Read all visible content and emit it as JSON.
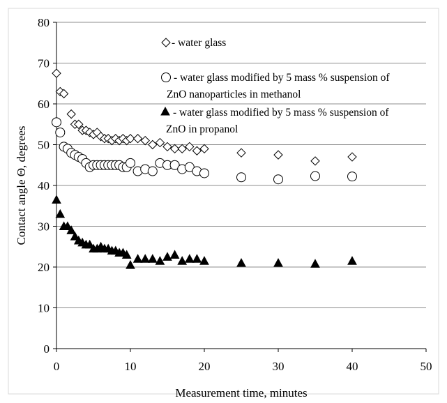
{
  "chart_data": {
    "type": "scatter",
    "title": "",
    "xlabel": "Measurement time, minutes",
    "ylabel": "Contact angle Θ, degrees",
    "xlim": [
      0,
      50
    ],
    "ylim": [
      0,
      80
    ],
    "xticks": [
      "0",
      "10",
      "20",
      "30",
      "40",
      "50"
    ],
    "yticks": [
      "0",
      "10",
      "20",
      "30",
      "40",
      "50",
      "60",
      "70",
      "80"
    ],
    "grid": "horizontal",
    "legend_position": "top-center (inside plot)",
    "series": [
      {
        "name": "- water glass",
        "legend_lines": [
          "- water glass"
        ],
        "marker": "diamond-open",
        "x": [
          0,
          0.5,
          1,
          2,
          2.5,
          3,
          3.5,
          4,
          4.5,
          5,
          5.5,
          6,
          6.5,
          7,
          7.5,
          8,
          8.5,
          9,
          9.5,
          10,
          11,
          12,
          13,
          14,
          15,
          16,
          17,
          18,
          19,
          20,
          25,
          30,
          35,
          40
        ],
        "y": [
          67.5,
          63,
          62.5,
          57.5,
          55,
          55,
          53.5,
          53.5,
          53,
          52.5,
          53,
          52,
          51.5,
          51.5,
          51,
          51.5,
          51,
          51.5,
          51,
          51.5,
          51.5,
          51,
          50,
          50.5,
          49.5,
          49,
          49,
          49.5,
          48.5,
          49,
          48,
          47.5,
          46,
          47
        ]
      },
      {
        "name": "- water glass modified by 5 mass % suspension of ZnO nanoparticles in methanol",
        "legend_lines": [
          "- water glass modified by 5 mass % suspension of",
          "ZnO nanoparticles in methanol"
        ],
        "marker": "circle-open",
        "x": [
          0,
          0.5,
          1,
          1.5,
          2,
          2.5,
          3,
          3.5,
          4,
          4.5,
          5,
          5.5,
          6,
          6.5,
          7,
          7.5,
          8,
          8.5,
          9,
          9.5,
          10,
          11,
          12,
          13,
          14,
          15,
          16,
          17,
          18,
          19,
          20,
          25,
          30,
          35,
          40
        ],
        "y": [
          55.5,
          53,
          49.5,
          49,
          48,
          47.5,
          47,
          46.5,
          45.5,
          44.5,
          45,
          45,
          45,
          45,
          45,
          45,
          45,
          45,
          44.5,
          44.5,
          45.5,
          43.5,
          44,
          43.5,
          45.5,
          45,
          45,
          44,
          44.5,
          43.5,
          43,
          42,
          41.5,
          42.3,
          42.2
        ]
      },
      {
        "name": "- water glass modified by 5 mass % suspension of ZnO in propanol",
        "legend_lines": [
          "-  water glass modified by 5 mass % suspension of",
          "ZnO in propanol"
        ],
        "marker": "triangle-filled",
        "x": [
          0,
          0.5,
          1,
          1.5,
          2,
          2.5,
          3,
          3.5,
          4,
          4.5,
          5,
          5.5,
          6,
          6.5,
          7,
          7.5,
          8,
          8.5,
          9,
          9.5,
          10,
          11,
          12,
          13,
          14,
          15,
          16,
          17,
          18,
          19,
          20,
          25,
          30,
          35,
          40
        ],
        "y": [
          36.5,
          33,
          30,
          30,
          29,
          27.5,
          26.5,
          26,
          25.5,
          25.5,
          24.5,
          24.5,
          25,
          24.5,
          24.5,
          24,
          24,
          23.5,
          23.5,
          23,
          20.5,
          22,
          22,
          22,
          21.5,
          22.5,
          23,
          21.5,
          22,
          22,
          21.5,
          21,
          21,
          20.8,
          21.5
        ]
      }
    ]
  }
}
